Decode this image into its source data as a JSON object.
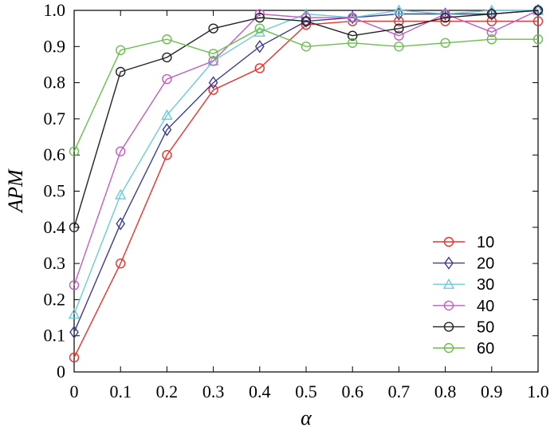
{
  "chart_data": {
    "type": "line",
    "xlabel": "α",
    "ylabel": "APM",
    "xlim": [
      0,
      1.0
    ],
    "ylim": [
      0,
      1.0
    ],
    "x": [
      0,
      0.1,
      0.2,
      0.3,
      0.4,
      0.5,
      0.6,
      0.7,
      0.8,
      0.9,
      1.0
    ],
    "x_tick_labels": [
      "0",
      "0.1",
      "0.2",
      "0.3",
      "0.4",
      "0.5",
      "0.6",
      "0.7",
      "0.8",
      "0.9",
      "1.0"
    ],
    "y_ticks": [
      0,
      0.1,
      0.2,
      0.3,
      0.4,
      0.5,
      0.6,
      0.7,
      0.8,
      0.9,
      1.0
    ],
    "y_tick_labels": [
      "0",
      "0.1",
      "0.2",
      "0.3",
      "0.4",
      "0.5",
      "0.6",
      "0.7",
      "0.8",
      "0.9",
      "1.0"
    ],
    "grid": false,
    "legend_position": "bottom-right",
    "series": [
      {
        "name": "10",
        "color": "#e8322e",
        "marker": "circle",
        "values": [
          0.04,
          0.3,
          0.6,
          0.78,
          0.84,
          0.96,
          0.97,
          0.97,
          0.97,
          0.97,
          0.97
        ]
      },
      {
        "name": "20",
        "color": "#3a3c96",
        "marker": "diamond",
        "values": [
          0.11,
          0.41,
          0.67,
          0.8,
          0.9,
          0.97,
          0.98,
          0.99,
          0.99,
          0.99,
          1.0
        ]
      },
      {
        "name": "30",
        "color": "#6ccbd6",
        "marker": "triangle",
        "values": [
          0.16,
          0.49,
          0.71,
          0.86,
          0.94,
          0.99,
          0.98,
          1.0,
          0.99,
          1.0,
          1.0
        ]
      },
      {
        "name": "40",
        "color": "#c25cc4",
        "marker": "circle",
        "values": [
          0.24,
          0.61,
          0.81,
          0.86,
          0.99,
          0.98,
          0.98,
          0.93,
          0.99,
          0.94,
          1.0
        ]
      },
      {
        "name": "50",
        "color": "#222222",
        "marker": "circle",
        "values": [
          0.4,
          0.83,
          0.87,
          0.95,
          0.98,
          0.97,
          0.93,
          0.95,
          0.98,
          0.99,
          1.0
        ]
      },
      {
        "name": "60",
        "color": "#6abf4b",
        "marker": "circle",
        "values": [
          0.61,
          0.89,
          0.92,
          0.88,
          0.95,
          0.9,
          0.91,
          0.9,
          0.91,
          0.92,
          0.92
        ]
      }
    ]
  }
}
